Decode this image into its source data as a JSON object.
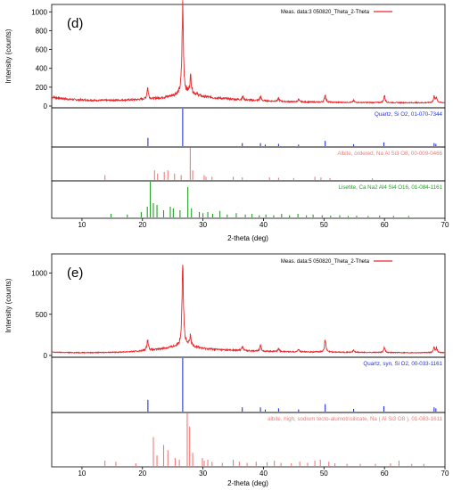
{
  "chart_data": [
    {
      "panel_label": "(d)",
      "type": "line",
      "xlabel": "2-theta (deg)",
      "ylabel": "Intensity (counts)",
      "xlim": [
        5,
        70
      ],
      "ylim": [
        0,
        1050
      ],
      "xticks": [
        10,
        20,
        30,
        40,
        50,
        60,
        70
      ],
      "yticks": [
        0,
        200,
        400,
        600,
        800,
        1000
      ],
      "legend": {
        "label": "Meas. data:3 050820_Theta_2-Theta",
        "position": "top-right"
      },
      "measured": {
        "color": "#e8262a",
        "baseline": [
          [
            5,
            95
          ],
          [
            8,
            70
          ],
          [
            12,
            60
          ],
          [
            16,
            62
          ],
          [
            19,
            68
          ],
          [
            22,
            80
          ],
          [
            24,
            95
          ],
          [
            25.5,
            120
          ],
          [
            27,
            140
          ],
          [
            28.5,
            130
          ],
          [
            30,
            100
          ],
          [
            33,
            82
          ],
          [
            36,
            68
          ],
          [
            40,
            55
          ],
          [
            45,
            45
          ],
          [
            50,
            40
          ],
          [
            55,
            38
          ],
          [
            60,
            36
          ],
          [
            65,
            35
          ],
          [
            70,
            35
          ]
        ],
        "peaks": [
          [
            20.85,
            120
          ],
          [
            26.65,
            900
          ],
          [
            27.9,
            80
          ],
          [
            28.0,
            110
          ],
          [
            36.6,
            35
          ],
          [
            39.5,
            45
          ],
          [
            42.5,
            30
          ],
          [
            45.8,
            25
          ],
          [
            50.2,
            80
          ],
          [
            54.9,
            20
          ],
          [
            60.0,
            75
          ],
          [
            68.2,
            60
          ],
          [
            68.6,
            55
          ]
        ]
      },
      "references": [
        {
          "label": "Quartz, Si O2, 01-070-7344",
          "color": "#2233dd",
          "sticks": [
            [
              20.9,
              22
            ],
            [
              26.65,
              100
            ],
            [
              36.5,
              8
            ],
            [
              39.5,
              8
            ],
            [
              40.3,
              4
            ],
            [
              42.5,
              6
            ],
            [
              45.8,
              4
            ],
            [
              50.2,
              14
            ],
            [
              54.9,
              5
            ],
            [
              59.9,
              10
            ],
            [
              68.2,
              8
            ],
            [
              68.5,
              6
            ]
          ]
        },
        {
          "label": "Albite, ordered, Na Al Si3 O8, 00-009-0466",
          "color": "#f07a7a",
          "sticks": [
            [
              13.8,
              15
            ],
            [
              22.0,
              30
            ],
            [
              22.5,
              20
            ],
            [
              23.6,
              25
            ],
            [
              24.2,
              30
            ],
            [
              25.3,
              20
            ],
            [
              26.4,
              15
            ],
            [
              27.9,
              100
            ],
            [
              28.3,
              30
            ],
            [
              30.2,
              15
            ],
            [
              30.5,
              10
            ],
            [
              31.5,
              10
            ],
            [
              35.0,
              10
            ],
            [
              36.5,
              8
            ],
            [
              41.0,
              8
            ],
            [
              42.5,
              7
            ],
            [
              45.0,
              6
            ],
            [
              48.5,
              10
            ],
            [
              49.5,
              8
            ],
            [
              51.0,
              6
            ],
            [
              58.0,
              5
            ]
          ]
        },
        {
          "label": "Lisetite, Ca Na2 Al4 Si4 O16, 01-084-1161",
          "color": "#22a022",
          "sticks": [
            [
              14.8,
              10
            ],
            [
              17.5,
              8
            ],
            [
              19.8,
              15
            ],
            [
              20.8,
              30
            ],
            [
              21.3,
              100
            ],
            [
              21.8,
              40
            ],
            [
              22.4,
              35
            ],
            [
              23.5,
              20
            ],
            [
              24.6,
              30
            ],
            [
              25.1,
              25
            ],
            [
              26.2,
              20
            ],
            [
              27.5,
              85
            ],
            [
              28.1,
              25
            ],
            [
              29.4,
              15
            ],
            [
              30.0,
              12
            ],
            [
              30.8,
              15
            ],
            [
              31.6,
              10
            ],
            [
              32.8,
              18
            ],
            [
              34.0,
              8
            ],
            [
              35.5,
              12
            ],
            [
              37.0,
              8
            ],
            [
              38.1,
              10
            ],
            [
              39.3,
              6
            ],
            [
              40.4,
              8
            ],
            [
              41.7,
              6
            ],
            [
              43.0,
              10
            ],
            [
              44.3,
              6
            ],
            [
              45.7,
              10
            ],
            [
              47.1,
              6
            ],
            [
              48.2,
              8
            ],
            [
              49.7,
              6
            ],
            [
              51.1,
              5
            ],
            [
              52.6,
              6
            ],
            [
              54.0,
              4
            ],
            [
              55.4,
              5
            ],
            [
              57.3,
              4
            ],
            [
              59.2,
              5
            ],
            [
              61.5,
              4
            ],
            [
              64.0,
              4
            ]
          ]
        }
      ]
    },
    {
      "panel_label": "(e)",
      "type": "line",
      "xlabel": "2-theta (deg)",
      "ylabel": "Intensity (counts)",
      "xlim": [
        5,
        70
      ],
      "ylim": [
        0,
        1200
      ],
      "xticks": [
        10,
        20,
        30,
        40,
        50,
        60,
        70
      ],
      "yticks": [
        0,
        500,
        1000
      ],
      "legend": {
        "label": "Meas. data:5 050820_Theta_2-Theta",
        "position": "top-right"
      },
      "measured": {
        "color": "#e8262a",
        "baseline": [
          [
            5,
            40
          ],
          [
            8,
            35
          ],
          [
            12,
            35
          ],
          [
            16,
            40
          ],
          [
            19,
            50
          ],
          [
            22,
            70
          ],
          [
            24,
            90
          ],
          [
            25.5,
            110
          ],
          [
            27,
            120
          ],
          [
            28.5,
            110
          ],
          [
            30,
            85
          ],
          [
            33,
            70
          ],
          [
            36,
            60
          ],
          [
            40,
            52
          ],
          [
            45,
            45
          ],
          [
            50,
            42
          ],
          [
            55,
            38
          ],
          [
            60,
            36
          ],
          [
            65,
            34
          ],
          [
            70,
            34
          ]
        ],
        "peaks": [
          [
            20.85,
            130
          ],
          [
            26.65,
            1060
          ],
          [
            27.9,
            110
          ],
          [
            36.5,
            55
          ],
          [
            39.5,
            60
          ],
          [
            42.5,
            35
          ],
          [
            45.8,
            30
          ],
          [
            50.2,
            140
          ],
          [
            54.9,
            25
          ],
          [
            60.0,
            60
          ],
          [
            68.2,
            60
          ],
          [
            68.6,
            50
          ]
        ]
      },
      "references": [
        {
          "label": "Quartz, syn, Si O2, 00-033-1161",
          "color": "#2233dd",
          "sticks": [
            [
              20.9,
              22
            ],
            [
              26.65,
              100
            ],
            [
              36.5,
              8
            ],
            [
              39.5,
              8
            ],
            [
              40.3,
              4
            ],
            [
              42.5,
              6
            ],
            [
              45.8,
              4
            ],
            [
              50.2,
              14
            ],
            [
              54.9,
              5
            ],
            [
              59.9,
              10
            ],
            [
              68.2,
              8
            ],
            [
              68.5,
              6
            ]
          ]
        },
        {
          "label": "albite, high, sodium tecto-alumotrisilicate, Na ( Al Si3 O8 ), 01-083-1611",
          "color": "#f07a7a",
          "sticks": [
            [
              13.8,
              10
            ],
            [
              15.6,
              8
            ],
            [
              18.9,
              5
            ],
            [
              21.8,
              55
            ],
            [
              22.4,
              20
            ],
            [
              23.5,
              40
            ],
            [
              24.2,
              30
            ],
            [
              25.4,
              15
            ],
            [
              26.1,
              12
            ],
            [
              27.4,
              100
            ],
            [
              27.8,
              75
            ],
            [
              28.3,
              25
            ],
            [
              29.9,
              15
            ],
            [
              30.2,
              10
            ],
            [
              30.8,
              12
            ],
            [
              31.5,
              8
            ],
            [
              33.2,
              6
            ],
            [
              35.0,
              12
            ],
            [
              36.0,
              8
            ],
            [
              37.3,
              6
            ],
            [
              38.8,
              8
            ],
            [
              40.6,
              7
            ],
            [
              41.8,
              10
            ],
            [
              42.9,
              6
            ],
            [
              44.6,
              5
            ],
            [
              46.0,
              8
            ],
            [
              47.3,
              6
            ],
            [
              48.5,
              10
            ],
            [
              49.4,
              12
            ],
            [
              50.8,
              8
            ],
            [
              51.8,
              5
            ],
            [
              53.8,
              4
            ],
            [
              56.0,
              4
            ],
            [
              58.5,
              4
            ],
            [
              61.0,
              5
            ],
            [
              62.4,
              10
            ],
            [
              64.5,
              4
            ],
            [
              66.5,
              4
            ]
          ]
        }
      ]
    }
  ]
}
